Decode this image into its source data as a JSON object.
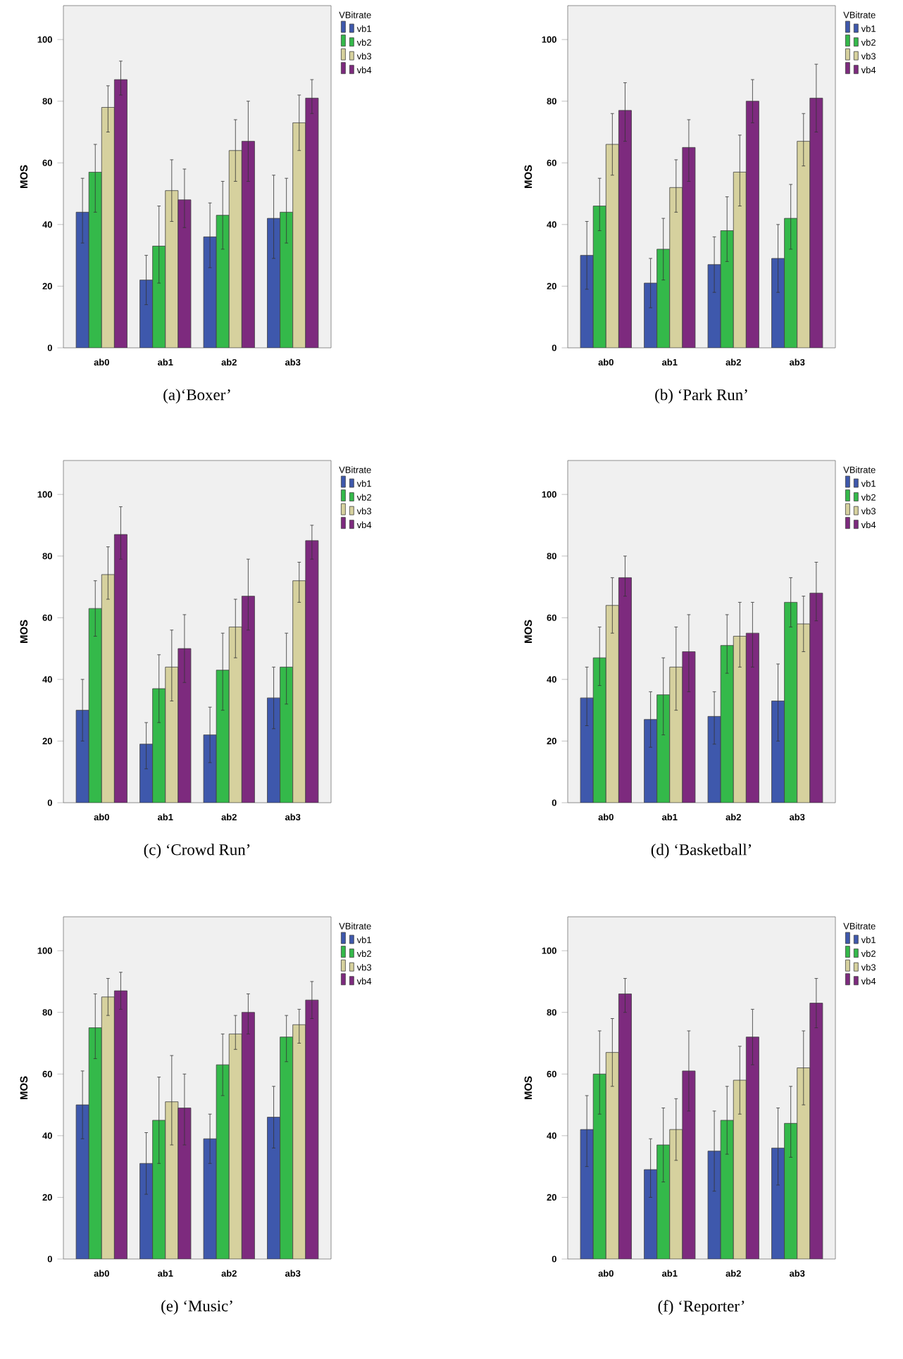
{
  "chart_data": [
    {
      "type": "bar",
      "title": "(a)‘Boxer’",
      "ylabel": "MOS",
      "legend": "top right",
      "legend_title": "VBitrate",
      "ylim": [
        0,
        111
      ],
      "yticks": [
        0,
        20,
        40,
        60,
        80,
        100
      ],
      "categories": [
        "ab0",
        "ab1",
        "ab2",
        "ab3"
      ],
      "series": [
        {
          "name": "vb1",
          "color": "#3e58ac",
          "values": [
            44,
            22,
            36,
            42
          ],
          "errors": [
            [
              34,
              55
            ],
            [
              14,
              30
            ],
            [
              26,
              47
            ],
            [
              29,
              56
            ]
          ]
        },
        {
          "name": "vb2",
          "color": "#34b94a",
          "values": [
            57,
            33,
            43,
            44
          ],
          "errors": [
            [
              44,
              66
            ],
            [
              21,
              46
            ],
            [
              32,
              54
            ],
            [
              34,
              55
            ]
          ]
        },
        {
          "name": "vb3",
          "color": "#d6d19e",
          "values": [
            78,
            51,
            64,
            73
          ],
          "errors": [
            [
              70,
              85
            ],
            [
              41,
              61
            ],
            [
              54,
              74
            ],
            [
              64,
              82
            ]
          ]
        },
        {
          "name": "vb4",
          "color": "#7d2a7e",
          "values": [
            87,
            48,
            67,
            81
          ],
          "errors": [
            [
              82,
              93
            ],
            [
              39,
              58
            ],
            [
              54,
              80
            ],
            [
              76,
              87
            ]
          ]
        }
      ]
    },
    {
      "type": "bar",
      "title": "(b) ‘Park Run’",
      "ylabel": "MOS",
      "legend": "top right",
      "legend_title": "VBitrate",
      "ylim": [
        0,
        111
      ],
      "yticks": [
        0,
        20,
        40,
        60,
        80,
        100
      ],
      "categories": [
        "ab0",
        "ab1",
        "ab2",
        "ab3"
      ],
      "series": [
        {
          "name": "vb1",
          "color": "#3e58ac",
          "values": [
            30,
            21,
            27,
            29
          ],
          "errors": [
            [
              19,
              41
            ],
            [
              13,
              29
            ],
            [
              18,
              36
            ],
            [
              18,
              40
            ]
          ]
        },
        {
          "name": "vb2",
          "color": "#34b94a",
          "values": [
            46,
            32,
            38,
            42
          ],
          "errors": [
            [
              38,
              55
            ],
            [
              22,
              42
            ],
            [
              28,
              49
            ],
            [
              32,
              53
            ]
          ]
        },
        {
          "name": "vb3",
          "color": "#d6d19e",
          "values": [
            66,
            52,
            57,
            67
          ],
          "errors": [
            [
              56,
              76
            ],
            [
              44,
              61
            ],
            [
              46,
              69
            ],
            [
              59,
              76
            ]
          ]
        },
        {
          "name": "vb4",
          "color": "#7d2a7e",
          "values": [
            77,
            65,
            80,
            81
          ],
          "errors": [
            [
              67,
              86
            ],
            [
              54,
              74
            ],
            [
              73,
              87
            ],
            [
              70,
              92
            ]
          ]
        }
      ]
    },
    {
      "type": "bar",
      "title": "(c) ‘Crowd Run’",
      "ylabel": "MOS",
      "legend": "top right",
      "legend_title": "VBitrate",
      "ylim": [
        0,
        111
      ],
      "yticks": [
        0,
        20,
        40,
        60,
        80,
        100
      ],
      "categories": [
        "ab0",
        "ab1",
        "ab2",
        "ab3"
      ],
      "series": [
        {
          "name": "vb1",
          "color": "#3e58ac",
          "values": [
            30,
            19,
            22,
            34
          ],
          "errors": [
            [
              20,
              40
            ],
            [
              11,
              26
            ],
            [
              13,
              31
            ],
            [
              24,
              44
            ]
          ]
        },
        {
          "name": "vb2",
          "color": "#34b94a",
          "values": [
            63,
            37,
            43,
            44
          ],
          "errors": [
            [
              54,
              72
            ],
            [
              26,
              48
            ],
            [
              30,
              55
            ],
            [
              32,
              55
            ]
          ]
        },
        {
          "name": "vb3",
          "color": "#d6d19e",
          "values": [
            74,
            44,
            57,
            72
          ],
          "errors": [
            [
              66,
              83
            ],
            [
              33,
              56
            ],
            [
              47,
              66
            ],
            [
              65,
              78
            ]
          ]
        },
        {
          "name": "vb4",
          "color": "#7d2a7e",
          "values": [
            87,
            50,
            67,
            85
          ],
          "errors": [
            [
              79,
              96
            ],
            [
              39,
              61
            ],
            [
              56,
              79
            ],
            [
              79,
              90
            ]
          ]
        }
      ]
    },
    {
      "type": "bar",
      "title": "(d) ‘Basketball’",
      "ylabel": "MOS",
      "legend": "top right",
      "legend_title": "VBitrate",
      "ylim": [
        0,
        111
      ],
      "yticks": [
        0,
        20,
        40,
        60,
        80,
        100
      ],
      "categories": [
        "ab0",
        "ab1",
        "ab2",
        "ab3"
      ],
      "series": [
        {
          "name": "vb1",
          "color": "#3e58ac",
          "values": [
            34,
            27,
            28,
            33
          ],
          "errors": [
            [
              25,
              44
            ],
            [
              18,
              36
            ],
            [
              19,
              36
            ],
            [
              20,
              45
            ]
          ]
        },
        {
          "name": "vb2",
          "color": "#34b94a",
          "values": [
            47,
            35,
            51,
            65
          ],
          "errors": [
            [
              38,
              57
            ],
            [
              22,
              47
            ],
            [
              42,
              61
            ],
            [
              57,
              73
            ]
          ]
        },
        {
          "name": "vb3",
          "color": "#d6d19e",
          "values": [
            64,
            44,
            54,
            58
          ],
          "errors": [
            [
              55,
              73
            ],
            [
              30,
              57
            ],
            [
              44,
              65
            ],
            [
              49,
              67
            ]
          ]
        },
        {
          "name": "vb4",
          "color": "#7d2a7e",
          "values": [
            73,
            49,
            55,
            68
          ],
          "errors": [
            [
              67,
              80
            ],
            [
              36,
              61
            ],
            [
              44,
              65
            ],
            [
              59,
              78
            ]
          ]
        }
      ]
    },
    {
      "type": "bar",
      "title": "(e) ‘Music’",
      "ylabel": "MOS",
      "legend": "top right",
      "legend_title": "VBitrate",
      "ylim": [
        0,
        111
      ],
      "yticks": [
        0,
        20,
        40,
        60,
        80,
        100
      ],
      "categories": [
        "ab0",
        "ab1",
        "ab2",
        "ab3"
      ],
      "series": [
        {
          "name": "vb1",
          "color": "#3e58ac",
          "values": [
            50,
            31,
            39,
            46
          ],
          "errors": [
            [
              39,
              61
            ],
            [
              21,
              41
            ],
            [
              31,
              47
            ],
            [
              36,
              56
            ]
          ]
        },
        {
          "name": "vb2",
          "color": "#34b94a",
          "values": [
            75,
            45,
            63,
            72
          ],
          "errors": [
            [
              65,
              86
            ],
            [
              31,
              59
            ],
            [
              53,
              73
            ],
            [
              64,
              79
            ]
          ]
        },
        {
          "name": "vb3",
          "color": "#d6d19e",
          "values": [
            85,
            51,
            73,
            76
          ],
          "errors": [
            [
              79,
              91
            ],
            [
              37,
              66
            ],
            [
              68,
              79
            ],
            [
              70,
              81
            ]
          ]
        },
        {
          "name": "vb4",
          "color": "#7d2a7e",
          "values": [
            87,
            49,
            80,
            84
          ],
          "errors": [
            [
              81,
              93
            ],
            [
              37,
              60
            ],
            [
              73,
              86
            ],
            [
              78,
              90
            ]
          ]
        }
      ]
    },
    {
      "type": "bar",
      "title": "(f) ‘Reporter’",
      "ylabel": "MOS",
      "legend": "top right",
      "legend_title": "VBitrate",
      "ylim": [
        0,
        111
      ],
      "yticks": [
        0,
        20,
        40,
        60,
        80,
        100
      ],
      "categories": [
        "ab0",
        "ab1",
        "ab2",
        "ab3"
      ],
      "series": [
        {
          "name": "vb1",
          "color": "#3e58ac",
          "values": [
            42,
            29,
            35,
            36
          ],
          "errors": [
            [
              30,
              53
            ],
            [
              20,
              39
            ],
            [
              22,
              48
            ],
            [
              24,
              49
            ]
          ]
        },
        {
          "name": "vb2",
          "color": "#34b94a",
          "values": [
            60,
            37,
            45,
            44
          ],
          "errors": [
            [
              47,
              74
            ],
            [
              25,
              49
            ],
            [
              34,
              56
            ],
            [
              33,
              56
            ]
          ]
        },
        {
          "name": "vb3",
          "color": "#d6d19e",
          "values": [
            67,
            42,
            58,
            62
          ],
          "errors": [
            [
              56,
              78
            ],
            [
              32,
              52
            ],
            [
              47,
              69
            ],
            [
              50,
              74
            ]
          ]
        },
        {
          "name": "vb4",
          "color": "#7d2a7e",
          "values": [
            86,
            61,
            72,
            83
          ],
          "errors": [
            [
              80,
              91
            ],
            [
              48,
              74
            ],
            [
              63,
              81
            ],
            [
              75,
              91
            ]
          ]
        }
      ]
    }
  ]
}
